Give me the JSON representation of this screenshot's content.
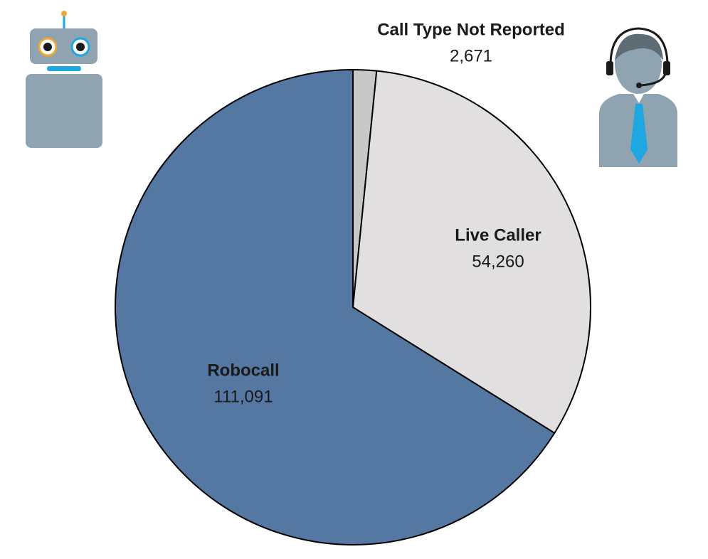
{
  "chart_data": {
    "type": "pie",
    "categories": [
      "Call Type Not Reported",
      "Live Caller",
      "Robocall"
    ],
    "values": [
      2671,
      54260,
      111091
    ],
    "value_labels": [
      "2,671",
      "54,260",
      "111,091"
    ],
    "colors": [
      "#c8c8c8",
      "#e1dfe0",
      "#5578a2"
    ]
  }
}
